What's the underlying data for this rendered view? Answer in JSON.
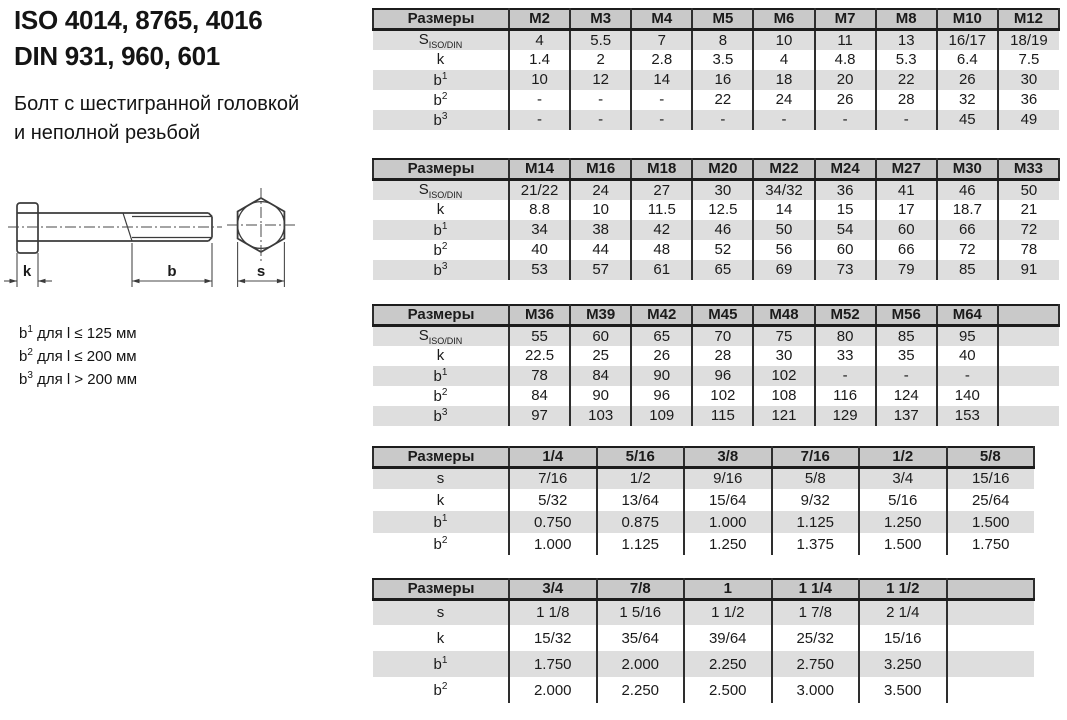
{
  "header": {
    "title_line1": "ISO 4014, 8765, 4016",
    "title_line2": "DIN 931, 960, 601",
    "subtitle_line1": "Болт с шестигранной головкой",
    "subtitle_line2": "и неполной резьбой"
  },
  "drawing": {
    "labels": {
      "k": "k",
      "b": "b",
      "s": "s"
    }
  },
  "notes": [
    {
      "base": "b",
      "sup": "1",
      "rest": " для l ≤ 125 мм"
    },
    {
      "base": "b",
      "sup": "2",
      "rest": " для l ≤ 200 мм"
    },
    {
      "base": "b",
      "sup": "3",
      "rest": " для l > 200 мм"
    }
  ],
  "colors": {
    "header_bg": "#c9c9c9",
    "stripe_bg": "#dedede",
    "border": "#1c1c1c"
  },
  "tables": [
    {
      "name": "metric-m2-m12",
      "header_label": "Размеры",
      "columns": [
        "M2",
        "M3",
        "M4",
        "M5",
        "M6",
        "M7",
        "M8",
        "M10",
        "M12"
      ],
      "rows": [
        {
          "label": "S",
          "label_sub": "ISO/DIN",
          "values": [
            "4",
            "5.5",
            "7",
            "8",
            "10",
            "11",
            "13",
            "16/17",
            "18/19"
          ]
        },
        {
          "label": "k",
          "values": [
            "1.4",
            "2",
            "2.8",
            "3.5",
            "4",
            "4.8",
            "5.3",
            "6.4",
            "7.5"
          ]
        },
        {
          "label": "b",
          "label_sup": "1",
          "values": [
            "10",
            "12",
            "14",
            "16",
            "18",
            "20",
            "22",
            "26",
            "30"
          ]
        },
        {
          "label": "b",
          "label_sup": "2",
          "values": [
            "-",
            "-",
            "-",
            "22",
            "24",
            "26",
            "28",
            "32",
            "36"
          ]
        },
        {
          "label": "b",
          "label_sup": "3",
          "values": [
            "-",
            "-",
            "-",
            "-",
            "-",
            "-",
            "-",
            "45",
            "49"
          ]
        }
      ]
    },
    {
      "name": "metric-m14-m33",
      "header_label": "Размеры",
      "columns": [
        "M14",
        "M16",
        "M18",
        "M20",
        "M22",
        "M24",
        "M27",
        "M30",
        "M33"
      ],
      "rows": [
        {
          "label": "S",
          "label_sub": "ISO/DIN",
          "values": [
            "21/22",
            "24",
            "27",
            "30",
            "34/32",
            "36",
            "41",
            "46",
            "50"
          ]
        },
        {
          "label": "k",
          "values": [
            "8.8",
            "10",
            "11.5",
            "12.5",
            "14",
            "15",
            "17",
            "18.7",
            "21"
          ]
        },
        {
          "label": "b",
          "label_sup": "1",
          "values": [
            "34",
            "38",
            "42",
            "46",
            "50",
            "54",
            "60",
            "66",
            "72"
          ]
        },
        {
          "label": "b",
          "label_sup": "2",
          "values": [
            "40",
            "44",
            "48",
            "52",
            "56",
            "60",
            "66",
            "72",
            "78"
          ]
        },
        {
          "label": "b",
          "label_sup": "3",
          "values": [
            "53",
            "57",
            "61",
            "65",
            "69",
            "73",
            "79",
            "85",
            "91"
          ]
        }
      ]
    },
    {
      "name": "metric-m36-m64",
      "header_label": "Размеры",
      "columns": [
        "M36",
        "M39",
        "M42",
        "M45",
        "M48",
        "M52",
        "M56",
        "M64",
        ""
      ],
      "rows": [
        {
          "label": "S",
          "label_sub": "ISO/DIN",
          "values": [
            "55",
            "60",
            "65",
            "70",
            "75",
            "80",
            "85",
            "95",
            ""
          ]
        },
        {
          "label": "k",
          "values": [
            "22.5",
            "25",
            "26",
            "28",
            "30",
            "33",
            "35",
            "40",
            ""
          ]
        },
        {
          "label": "b",
          "label_sup": "1",
          "values": [
            "78",
            "84",
            "90",
            "96",
            "102",
            "-",
            "-",
            "-",
            ""
          ]
        },
        {
          "label": "b",
          "label_sup": "2",
          "values": [
            "84",
            "90",
            "96",
            "102",
            "108",
            "116",
            "124",
            "140",
            ""
          ]
        },
        {
          "label": "b",
          "label_sup": "3",
          "values": [
            "97",
            "103",
            "109",
            "115",
            "121",
            "129",
            "137",
            "153",
            ""
          ]
        }
      ]
    },
    {
      "name": "inch-quarter-fiveeighths",
      "header_label": "Размеры",
      "columns": [
        "1/4",
        "5/16",
        "3/8",
        "7/16",
        "1/2",
        "5/8"
      ],
      "rows": [
        {
          "label": "s",
          "values": [
            "7/16",
            "1/2",
            "9/16",
            "5/8",
            "3/4",
            "15/16"
          ]
        },
        {
          "label": "k",
          "values": [
            "5/32",
            "13/64",
            "15/64",
            "9/32",
            "5/16",
            "25/64"
          ]
        },
        {
          "label": "b",
          "label_sup": "1",
          "values": [
            "0.750",
            "0.875",
            "1.000",
            "1.125",
            "1.250",
            "1.500"
          ]
        },
        {
          "label": "b",
          "label_sup": "2",
          "values": [
            "1.000",
            "1.125",
            "1.250",
            "1.375",
            "1.500",
            "1.750"
          ]
        }
      ]
    },
    {
      "name": "inch-threequarter-oneandhalf",
      "header_label": "Размеры",
      "columns": [
        "3/4",
        "7/8",
        "1",
        "1 1/4",
        "1 1/2",
        ""
      ],
      "rows": [
        {
          "label": "s",
          "values": [
            "1 1/8",
            "1 5/16",
            "1 1/2",
            "1 7/8",
            "2 1/4",
            ""
          ]
        },
        {
          "label": "k",
          "values": [
            "15/32",
            "35/64",
            "39/64",
            "25/32",
            "15/16",
            ""
          ]
        },
        {
          "label": "b",
          "label_sup": "1",
          "values": [
            "1.750",
            "2.000",
            "2.250",
            "2.750",
            "3.250",
            ""
          ]
        },
        {
          "label": "b",
          "label_sup": "2",
          "values": [
            "2.000",
            "2.250",
            "2.500",
            "3.000",
            "3.500",
            ""
          ]
        }
      ]
    }
  ]
}
